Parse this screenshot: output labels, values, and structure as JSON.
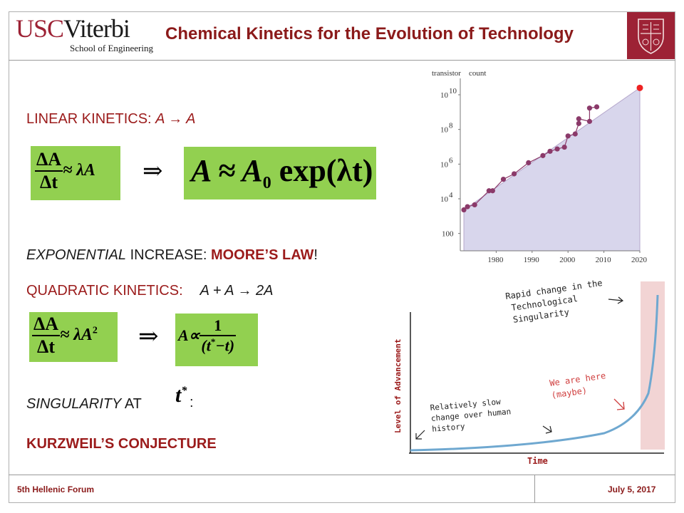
{
  "header": {
    "logo_usc": "USC",
    "logo_viterbi": "Viterbi",
    "logo_school": "School of Engineering",
    "title": "Chemical Kinetics for the Evolution of Technology"
  },
  "content": {
    "linear_label": "LINEAR KINETICS: ",
    "linear_reaction": "A → A",
    "eq1_num": "ΔA",
    "eq1_den": "Δt",
    "eq1_rhs": "≈ λA",
    "implies": "⇒",
    "eq2": "A ≈ A",
    "eq2_sub": "0",
    "eq2_exp": " exp(λt)",
    "exp_word": "EXPONENTIAL",
    "exp_rest": " INCREASE: ",
    "moores": "MOORE’S LAW",
    "exclaim": "!",
    "quad_label": "QUADRATIC KINETICS:",
    "quad_reaction": "A + A → 2A",
    "eq3_num": "ΔA",
    "eq3_den": "Δt",
    "eq3_rhs": "≈ λA",
    "eq3_sup": "2",
    "eq4_lhs": "A∝",
    "eq4_num": "1",
    "eq4_den_open": "(t",
    "eq4_star": "*",
    "eq4_den_close": "−t)",
    "sing_word": "SINGULARITY",
    "sing_at": " AT",
    "tstar": "t",
    "tstar_sup": "*",
    "colon": ":",
    "kurzweil": "KURZWEIL’S CONJECTURE"
  },
  "chart_data": [
    {
      "type": "scatter",
      "title": "",
      "ylabel_words": [
        "transistor",
        "count"
      ],
      "ytick_base": "10",
      "ytick_exps": [
        "10",
        "8",
        "6",
        "4"
      ],
      "ytick_plain": "100",
      "xticks": [
        "1980",
        "1990",
        "2000",
        "2010",
        "2020"
      ],
      "x": [
        1971,
        1972,
        1974,
        1978,
        1979,
        1982,
        1985,
        1989,
        1993,
        1995,
        1997,
        1999,
        2000,
        2002,
        2003,
        2003,
        2006,
        2006,
        2008,
        2020
      ],
      "y": [
        2300,
        3500,
        4500,
        29000,
        29000,
        134000,
        275000,
        1200000,
        3100000,
        5500000,
        7500000,
        9500000,
        42000000,
        55000000,
        220000000,
        410000000,
        291000000,
        1700000000,
        2000000000,
        25000000000
      ],
      "ylim": [
        10,
        50000000000
      ],
      "xlim": [
        1970,
        2020
      ],
      "log_y": true,
      "point_color": "#8b3a6a",
      "highlight_color": "#ee2222",
      "fill_color": "#d8d6ec"
    },
    {
      "type": "line",
      "xlabel": "Time",
      "ylabel": "Level of Advancement",
      "annotations": [
        {
          "lines": [
            "Rapid change in the",
            "Technological",
            "Singularity"
          ],
          "color": "#222222"
        },
        {
          "lines": [
            "We are here",
            "(maybe)"
          ],
          "color": "#d04040"
        },
        {
          "lines": [
            "Relatively slow",
            "change over human",
            "history"
          ],
          "color": "#222222"
        }
      ],
      "curve_color": "#6fa8d0",
      "band_color": "#f2d4d4"
    }
  ],
  "footer": {
    "left": "5th Hellenic Forum",
    "right": "July 5, 2017"
  }
}
